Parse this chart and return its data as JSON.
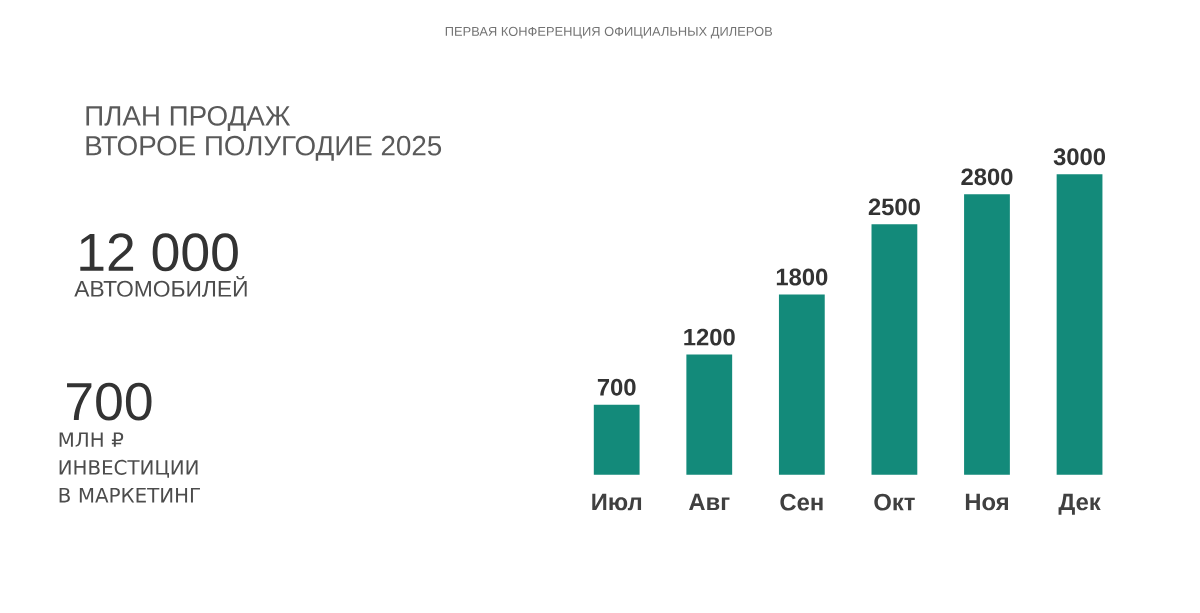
{
  "chart_data": {
    "type": "bar",
    "title": "ПЛАН ПРОДАЖ",
    "subtitle": "ВТОРОЕ ПОЛУГОДИЕ 2025",
    "annotations": [
      "ПЕРВАЯ КОНФЕРЕНЦИЯ ОФИЦИАЛЬНЫХ ДИЛЕРОВ",
      "12 000",
      "АВТОМОБИЛЕЙ",
      "700",
      "МЛН ₽ ИНВЕСТИЦИИ В МАРКЕТИНГ"
    ],
    "categories": [
      "Июл",
      "Авг",
      "Сен",
      "Окт",
      "Ноя",
      "Дек"
    ],
    "values": [
      700,
      1200,
      1800,
      2500,
      2800,
      3000
    ],
    "color": "#138a7a",
    "data_labels": true
  }
}
